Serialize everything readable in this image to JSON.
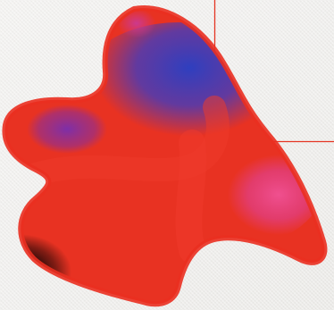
{
  "artwork": {
    "background_color": "#f1f0ee",
    "line_color": "#e53523",
    "blob_colors": {
      "red": "#e83222",
      "blue": "#3a3fb8",
      "pink": "#e9468f",
      "dark": "#0c0505",
      "purple": "#8c2f9a"
    }
  }
}
